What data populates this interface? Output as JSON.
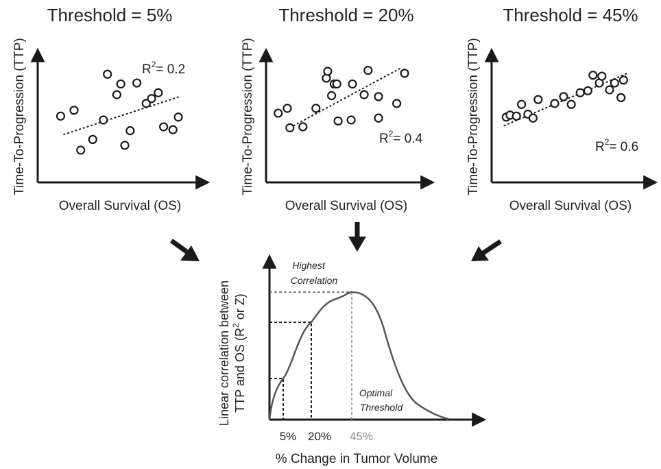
{
  "panels": [
    {
      "title": "Threshold = 5%",
      "xlabel": "Overall Survival (OS)",
      "ylabel": "Time-To-Progression (TTP)",
      "r2_base": "R",
      "r2_exp": "2",
      "r2_value": "= 0.2",
      "points": [
        [
          0.11,
          0.54
        ],
        [
          0.21,
          0.6
        ],
        [
          0.26,
          0.19
        ],
        [
          0.35,
          0.3
        ],
        [
          0.43,
          0.5
        ],
        [
          0.46,
          0.97
        ],
        [
          0.53,
          0.76
        ],
        [
          0.56,
          0.87
        ],
        [
          0.59,
          0.24
        ],
        [
          0.63,
          0.39
        ],
        [
          0.68,
          0.88
        ],
        [
          0.75,
          0.67
        ],
        [
          0.79,
          0.72
        ],
        [
          0.84,
          0.78
        ],
        [
          0.88,
          0.43
        ],
        [
          0.95,
          0.4
        ],
        [
          0.99,
          0.53
        ]
      ],
      "trend": [
        [
          0.13,
          0.35
        ],
        [
          1.0,
          0.74
        ]
      ]
    },
    {
      "title": "Threshold = 20%",
      "xlabel": "Overall Survival (OS)",
      "ylabel": "Time-To-Progression (TTP)",
      "r2_base": "R",
      "r2_exp": "2",
      "r2_value": "= 0.4",
      "points": [
        [
          0.03,
          0.57
        ],
        [
          0.1,
          0.62
        ],
        [
          0.12,
          0.42
        ],
        [
          0.22,
          0.43
        ],
        [
          0.32,
          0.62
        ],
        [
          0.4,
          0.93
        ],
        [
          0.41,
          1.0
        ],
        [
          0.44,
          0.75
        ],
        [
          0.46,
          0.87
        ],
        [
          0.48,
          0.87
        ],
        [
          0.49,
          0.49
        ],
        [
          0.59,
          0.5
        ],
        [
          0.6,
          0.87
        ],
        [
          0.69,
          0.76
        ],
        [
          0.72,
          1.01
        ],
        [
          0.8,
          0.52
        ],
        [
          0.8,
          0.74
        ],
        [
          0.94,
          0.67
        ],
        [
          1.0,
          0.98
        ]
      ],
      "trend": [
        [
          0.09,
          0.4
        ],
        [
          0.98,
          1.04
        ]
      ]
    },
    {
      "title": "Threshold = 45%",
      "xlabel": "Overall Survival (OS)",
      "ylabel": "Time-To-Progression (TTP)",
      "r2_base": "R",
      "r2_exp": "2",
      "r2_value": "= 0.6",
      "points": [
        [
          0.05,
          0.53
        ],
        [
          0.08,
          0.55
        ],
        [
          0.13,
          0.54
        ],
        [
          0.17,
          0.66
        ],
        [
          0.22,
          0.56
        ],
        [
          0.26,
          0.52
        ],
        [
          0.3,
          0.71
        ],
        [
          0.43,
          0.67
        ],
        [
          0.5,
          0.74
        ],
        [
          0.56,
          0.66
        ],
        [
          0.63,
          0.78
        ],
        [
          0.69,
          0.8
        ],
        [
          0.73,
          0.96
        ],
        [
          0.78,
          0.88
        ],
        [
          0.8,
          0.95
        ],
        [
          0.86,
          0.81
        ],
        [
          0.9,
          0.88
        ],
        [
          0.95,
          0.73
        ],
        [
          0.97,
          0.91
        ]
      ],
      "trend": [
        [
          0.03,
          0.44
        ],
        [
          1.0,
          0.98
        ]
      ]
    }
  ],
  "bottom_chart": {
    "ylabel_line1": "Linear correlation between",
    "ylabel_line2_prefix": "TTP and OS (R",
    "ylabel_line2_exp": "2",
    "ylabel_line2_suffix": " or Z)",
    "xlabel": "% Change in Tumor Volume",
    "ticks": [
      "5%",
      "20%",
      "45%"
    ],
    "annotation_top_line1": "Highest",
    "annotation_top_line2": "Correlation",
    "annotation_bottom_line1": "Optimal",
    "annotation_bottom_line2": "Threshold",
    "highlight_color": "#8a8a8a"
  }
}
